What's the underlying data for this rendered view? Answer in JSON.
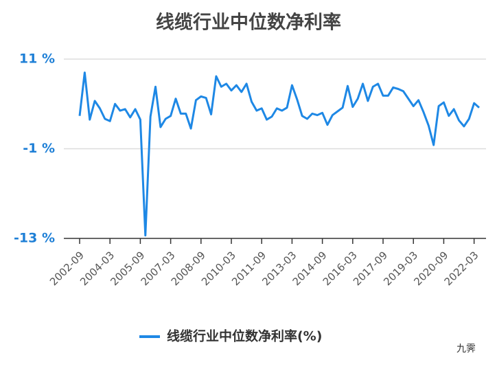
{
  "chart_data": {
    "type": "line",
    "title": "线缆行业中位数净利率",
    "categories": [
      "2002-09",
      null,
      null,
      null,
      null,
      null,
      "2004-03",
      null,
      null,
      null,
      null,
      null,
      "2005-09",
      null,
      null,
      null,
      null,
      null,
      "2007-03",
      null,
      null,
      null,
      null,
      null,
      "2008-09",
      null,
      null,
      null,
      null,
      null,
      "2010-03",
      null,
      null,
      null,
      null,
      null,
      "2011-09",
      null,
      null,
      null,
      null,
      null,
      "2013-03",
      null,
      null,
      null,
      null,
      null,
      "2014-09",
      null,
      null,
      null,
      null,
      null,
      "2016-03",
      null,
      null,
      null,
      null,
      null,
      "2017-09",
      null,
      null,
      null,
      null,
      null,
      "2019-03",
      null,
      null,
      null,
      null,
      null,
      "2020-09",
      null,
      null,
      null,
      null,
      null,
      "2022-03",
      null
    ],
    "series": [
      {
        "name": "线缆行业中位数净利率(%)",
        "color": "#1e88e5",
        "values": [
          3.4,
          9.2,
          2.9,
          5.4,
          4.4,
          3.0,
          2.7,
          5.0,
          4.1,
          4.3,
          3.2,
          4.3,
          2.9,
          -12.6,
          3.3,
          7.3,
          1.9,
          3.0,
          3.4,
          5.7,
          3.7,
          3.7,
          1.7,
          5.5,
          6.0,
          5.8,
          3.6,
          8.7,
          7.3,
          7.7,
          6.8,
          7.5,
          6.6,
          7.7,
          5.3,
          4.1,
          4.4,
          2.9,
          3.3,
          4.4,
          4.1,
          4.5,
          7.5,
          5.6,
          3.4,
          3.0,
          3.7,
          3.5,
          3.8,
          2.2,
          3.5,
          4.0,
          4.5,
          7.4,
          4.6,
          5.7,
          7.7,
          5.4,
          7.3,
          7.7,
          6.1,
          6.1,
          7.2,
          7.0,
          6.7,
          5.7,
          4.7,
          5.5,
          3.9,
          2.1,
          -0.5,
          4.7,
          5.2,
          3.4,
          4.3,
          2.8,
          2.0,
          3.0,
          5.1,
          4.5
        ]
      }
    ],
    "ylim": [
      -13,
      11
    ],
    "yticks": [
      {
        "value": -13,
        "label": "-13 %"
      },
      {
        "value": -1,
        "label": "-1 %"
      },
      {
        "value": 11,
        "label": "11 %"
      }
    ],
    "grid": true,
    "legend": "bottom",
    "watermark": "九霁"
  }
}
